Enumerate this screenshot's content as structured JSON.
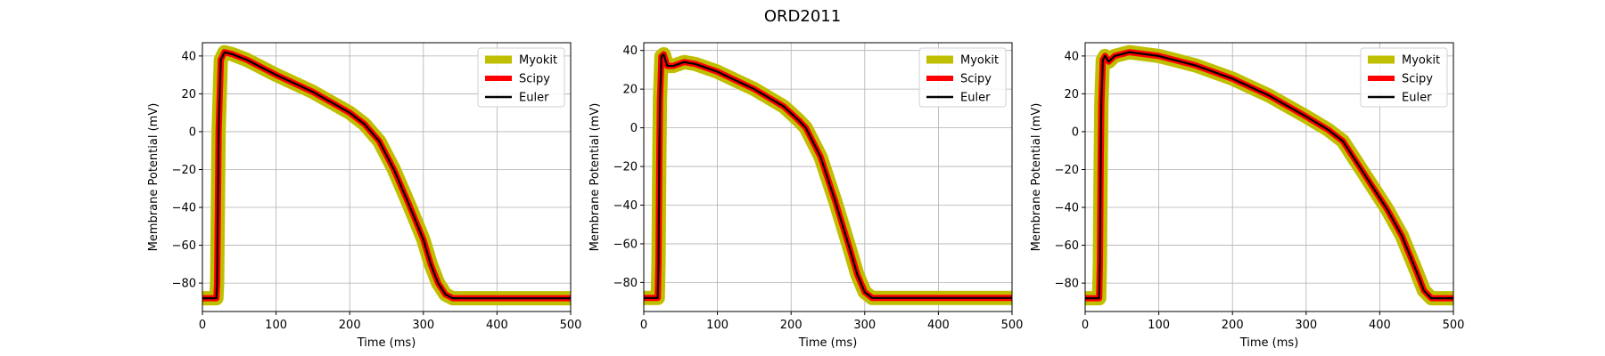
{
  "figure": {
    "suptitle": "ORD2011"
  },
  "chart_data": [
    {
      "type": "line",
      "xlabel": "Time (ms)",
      "ylabel": "Membrane Potential (mV)",
      "xlim": [
        0,
        500
      ],
      "ylim": [
        -95,
        47
      ],
      "xticks": [
        0,
        100,
        200,
        300,
        400,
        500
      ],
      "yticks": [
        -80,
        -60,
        -40,
        -20,
        0,
        20,
        40
      ],
      "grid": true,
      "legend_position": "top-right",
      "series": [
        {
          "name": "Myokit",
          "color": "#bfbf00"
        },
        {
          "name": "Scipy",
          "color": "#ff0000"
        },
        {
          "name": "Euler",
          "color": "#000000"
        }
      ],
      "x": [
        0,
        19,
        20,
        21,
        22,
        25,
        30,
        40,
        60,
        80,
        100,
        150,
        200,
        220,
        240,
        260,
        280,
        300,
        310,
        320,
        330,
        340,
        350,
        400,
        450,
        500
      ],
      "y": [
        -88,
        -88,
        -80,
        -40,
        0,
        38,
        42,
        41,
        38,
        34,
        30,
        21,
        10,
        4,
        -5,
        -20,
        -38,
        -57,
        -70,
        -80,
        -86,
        -88,
        -88,
        -88,
        -88,
        -88
      ]
    },
    {
      "type": "line",
      "xlabel": "Time (ms)",
      "ylabel": "Membrane Potential (mV)",
      "xlim": [
        0,
        500
      ],
      "ylim": [
        -95,
        44
      ],
      "xticks": [
        0,
        100,
        200,
        300,
        400,
        500
      ],
      "yticks": [
        -80,
        -60,
        -40,
        -20,
        0,
        20,
        40
      ],
      "grid": true,
      "legend_position": "top-right",
      "series": [
        {
          "name": "Myokit",
          "color": "#bfbf00"
        },
        {
          "name": "Scipy",
          "color": "#ff0000"
        },
        {
          "name": "Euler",
          "color": "#000000"
        }
      ],
      "x": [
        0,
        19,
        20,
        21,
        22,
        24,
        27,
        32,
        40,
        55,
        70,
        100,
        150,
        190,
        210,
        220,
        240,
        260,
        280,
        290,
        300,
        310,
        320,
        350,
        400,
        500
      ],
      "y": [
        -88,
        -88,
        -70,
        -20,
        15,
        37,
        38,
        32,
        32,
        34,
        33,
        29,
        20,
        11,
        4,
        0,
        -15,
        -38,
        -63,
        -76,
        -85,
        -88,
        -88,
        -88,
        -88,
        -88
      ]
    },
    {
      "type": "line",
      "xlabel": "Time (ms)",
      "ylabel": "Membrane Potential (mV)",
      "xlim": [
        0,
        500
      ],
      "ylim": [
        -95,
        47
      ],
      "xticks": [
        0,
        100,
        200,
        300,
        400,
        500
      ],
      "yticks": [
        -80,
        -60,
        -40,
        -20,
        0,
        20,
        40
      ],
      "grid": true,
      "legend_position": "top-right",
      "series": [
        {
          "name": "Myokit",
          "color": "#bfbf00"
        },
        {
          "name": "Scipy",
          "color": "#ff0000"
        },
        {
          "name": "Euler",
          "color": "#000000"
        }
      ],
      "x": [
        0,
        19,
        20,
        21,
        22,
        24,
        27,
        32,
        40,
        60,
        100,
        150,
        200,
        250,
        300,
        330,
        350,
        370,
        390,
        410,
        430,
        450,
        460,
        470,
        480,
        500
      ],
      "y": [
        -88,
        -88,
        -70,
        -20,
        15,
        38,
        40,
        37,
        40,
        42,
        40,
        35,
        28,
        19,
        8,
        1,
        -5,
        -17,
        -29,
        -41,
        -55,
        -74,
        -84,
        -88,
        -88,
        -88
      ]
    }
  ]
}
